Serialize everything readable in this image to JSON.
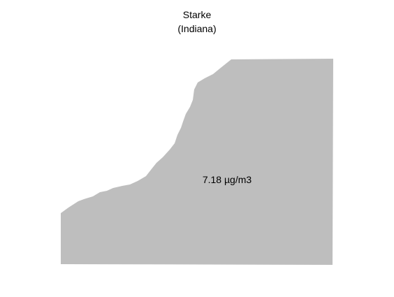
{
  "title": {
    "county": "Starke",
    "state": "(Indiana)"
  },
  "region": {
    "value_label": "7.18 µg/m3",
    "fill_color": "#bebebe"
  }
}
